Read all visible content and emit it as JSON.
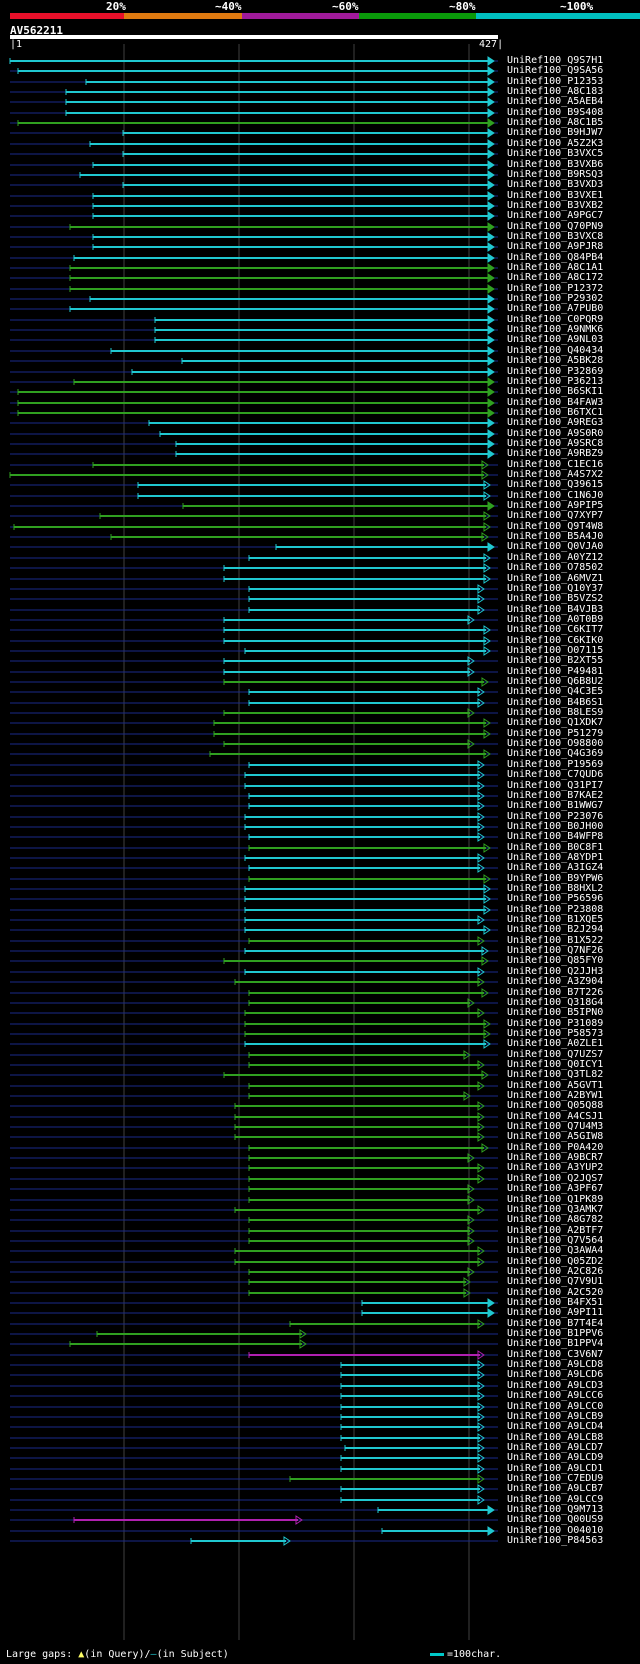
{
  "query": {
    "id": "AV562211",
    "start_label": "1",
    "end_label": "427"
  },
  "scale_ticks": [
    "20%",
    "~40%",
    "~60%",
    "~80%",
    "~100%"
  ],
  "colors": {
    "band_20": "#e8102a",
    "band_40": "#e07a10",
    "band_60": "#a01a9a",
    "band_80": "#0a9a0a",
    "band_100": "#00c0c0",
    "cyan": "#20c8d0",
    "green": "#30a020",
    "magenta": "#b020b0",
    "subject_line": "#1a2a8a",
    "grid": "#404040"
  },
  "legend": {
    "left_text_a": "Large gaps:",
    "left_text_b": "(in Query)/",
    "left_text_c": "(in Subject)",
    "right_text": "=100char."
  },
  "hits": [
    {
      "name": "UniRef100_Q9S7H1",
      "c": "c",
      "s": 10,
      "e": 494,
      "a": "p"
    },
    {
      "name": "UniRef100_Q9SA56",
      "c": "c",
      "s": 18,
      "e": 494,
      "a": "p"
    },
    {
      "name": "UniRef100_P12353",
      "c": "c",
      "s": 86,
      "e": 494,
      "a": "p"
    },
    {
      "name": "UniRef100_A8C183",
      "c": "c",
      "s": 66,
      "e": 494,
      "a": "p"
    },
    {
      "name": "UniRef100_A5AEB4",
      "c": "c",
      "s": 66,
      "e": 494,
      "a": "p"
    },
    {
      "name": "UniRef100_B9S408",
      "c": "c",
      "s": 66,
      "e": 494,
      "a": "p"
    },
    {
      "name": "UniRef100_A8C1B5",
      "c": "g",
      "s": 18,
      "e": 494,
      "a": "p"
    },
    {
      "name": "UniRef100_B9HJW7",
      "c": "c",
      "s": 123,
      "e": 494,
      "a": "p"
    },
    {
      "name": "UniRef100_A5Z2K3",
      "c": "c",
      "s": 90,
      "e": 494,
      "a": "p"
    },
    {
      "name": "UniRef100_B3VXC5",
      "c": "c",
      "s": 123,
      "e": 494,
      "a": "p"
    },
    {
      "name": "UniRef100_B3VXB6",
      "c": "c",
      "s": 93,
      "e": 494,
      "a": "p"
    },
    {
      "name": "UniRef100_B9RSQ3",
      "c": "c",
      "s": 80,
      "e": 494,
      "a": "p"
    },
    {
      "name": "UniRef100_B3VXD3",
      "c": "c",
      "s": 123,
      "e": 494,
      "a": "p"
    },
    {
      "name": "UniRef100_B3VXE1",
      "c": "c",
      "s": 93,
      "e": 494,
      "a": "p"
    },
    {
      "name": "UniRef100_B3VXB2",
      "c": "c",
      "s": 93,
      "e": 494,
      "a": "p"
    },
    {
      "name": "UniRef100_A9PGC7",
      "c": "c",
      "s": 93,
      "e": 494,
      "a": "p"
    },
    {
      "name": "UniRef100_Q70PN9",
      "c": "g",
      "s": 70,
      "e": 494,
      "a": "p"
    },
    {
      "name": "UniRef100_B3VXC8",
      "c": "c",
      "s": 93,
      "e": 494,
      "a": "p"
    },
    {
      "name": "UniRef100_A9PJR8",
      "c": "c",
      "s": 93,
      "e": 494,
      "a": "p"
    },
    {
      "name": "UniRef100_Q84PB4",
      "c": "c",
      "s": 74,
      "e": 494,
      "a": "p"
    },
    {
      "name": "UniRef100_A8C1A1",
      "c": "g",
      "s": 70,
      "e": 494,
      "a": "p"
    },
    {
      "name": "UniRef100_A8C172",
      "c": "g",
      "s": 70,
      "e": 494,
      "a": "p"
    },
    {
      "name": "UniRef100_P12372",
      "c": "g",
      "s": 70,
      "e": 494,
      "a": "p"
    },
    {
      "name": "UniRef100_P29302",
      "c": "c",
      "s": 90,
      "e": 494,
      "a": "p"
    },
    {
      "name": "UniRef100_A7PUB0",
      "c": "c",
      "s": 70,
      "e": 494,
      "a": "p"
    },
    {
      "name": "UniRef100_C0PQR9",
      "c": "c",
      "s": 155,
      "e": 494,
      "a": "p"
    },
    {
      "name": "UniRef100_A9NMK6",
      "c": "c",
      "s": 155,
      "e": 494,
      "a": "p"
    },
    {
      "name": "UniRef100_A9NL03",
      "c": "c",
      "s": 155,
      "e": 494,
      "a": "p"
    },
    {
      "name": "UniRef100_Q40434",
      "c": "c",
      "s": 111,
      "e": 494,
      "a": "p"
    },
    {
      "name": "UniRef100_A5BK28",
      "c": "c",
      "s": 182,
      "e": 494,
      "a": "p"
    },
    {
      "name": "UniRef100_P32869",
      "c": "c",
      "s": 132,
      "e": 494,
      "a": "p"
    },
    {
      "name": "UniRef100_P36213",
      "c": "g",
      "s": 74,
      "e": 494,
      "a": "p"
    },
    {
      "name": "UniRef100_B6SKI1",
      "c": "g",
      "s": 18,
      "e": 494,
      "a": "p"
    },
    {
      "name": "UniRef100_B4FAW3",
      "c": "g",
      "s": 18,
      "e": 494,
      "a": "p"
    },
    {
      "name": "UniRef100_B6TXC1",
      "c": "g",
      "s": 18,
      "e": 494,
      "a": "p"
    },
    {
      "name": "UniRef100_A9REG3",
      "c": "c",
      "s": 149,
      "e": 494,
      "a": "p"
    },
    {
      "name": "UniRef100_A9S0R0",
      "c": "c",
      "s": 160,
      "e": 494,
      "a": "p"
    },
    {
      "name": "UniRef100_A9SRC8",
      "c": "c",
      "s": 176,
      "e": 494,
      "a": "p"
    },
    {
      "name": "UniRef100_A9RBZ9",
      "c": "c",
      "s": 176,
      "e": 494,
      "a": "p"
    },
    {
      "name": "UniRef100_C1EC16",
      "c": "g",
      "s": 93,
      "e": 488,
      "a": "h"
    },
    {
      "name": "UniRef100_A4S7X2",
      "c": "g",
      "s": 10,
      "e": 488,
      "a": "h"
    },
    {
      "name": "UniRef100_Q39615",
      "c": "c",
      "s": 138,
      "e": 490,
      "a": "h"
    },
    {
      "name": "UniRef100_C1N6J0",
      "c": "c",
      "s": 138,
      "e": 490,
      "a": "h"
    },
    {
      "name": "UniRef100_A9PIP5",
      "c": "g",
      "s": 183,
      "e": 494,
      "a": "p"
    },
    {
      "name": "UniRef100_Q7XYP7",
      "c": "g",
      "s": 100,
      "e": 490,
      "a": "h"
    },
    {
      "name": "UniRef100_Q9T4W8",
      "c": "g",
      "s": 14,
      "e": 490,
      "a": "h"
    },
    {
      "name": "UniRef100_B5A4J0",
      "c": "g",
      "s": 111,
      "e": 488,
      "a": "h"
    },
    {
      "name": "UniRef100_Q0VJA0",
      "c": "c",
      "s": 276,
      "e": 494,
      "a": "p"
    },
    {
      "name": "UniRef100_A0YZ12",
      "c": "c",
      "s": 249,
      "e": 490,
      "a": "h"
    },
    {
      "name": "UniRef100_O78502",
      "c": "c",
      "s": 224,
      "e": 490,
      "a": "h"
    },
    {
      "name": "UniRef100_A6MVZ1",
      "c": "c",
      "s": 224,
      "e": 490,
      "a": "h"
    },
    {
      "name": "UniRef100_Q10Y37",
      "c": "c",
      "s": 249,
      "e": 484,
      "a": "h"
    },
    {
      "name": "UniRef100_B5VZS2",
      "c": "c",
      "s": 249,
      "e": 484,
      "a": "h"
    },
    {
      "name": "UniRef100_B4VJB3",
      "c": "c",
      "s": 249,
      "e": 484,
      "a": "h"
    },
    {
      "name": "UniRef100_A0T0B9",
      "c": "c",
      "s": 224,
      "e": 474,
      "a": "h"
    },
    {
      "name": "UniRef100_C6KIT7",
      "c": "c",
      "s": 224,
      "e": 490,
      "a": "h"
    },
    {
      "name": "UniRef100_C6KIK0",
      "c": "c",
      "s": 224,
      "e": 490,
      "a": "h"
    },
    {
      "name": "UniRef100_O07115",
      "c": "c",
      "s": 245,
      "e": 490,
      "a": "h"
    },
    {
      "name": "UniRef100_B2XT55",
      "c": "c",
      "s": 224,
      "e": 474,
      "a": "h"
    },
    {
      "name": "UniRef100_P49481",
      "c": "c",
      "s": 224,
      "e": 474,
      "a": "h"
    },
    {
      "name": "UniRef100_Q6B8U2",
      "c": "g",
      "s": 224,
      "e": 488,
      "a": "h"
    },
    {
      "name": "UniRef100_Q4C3E5",
      "c": "c",
      "s": 249,
      "e": 484,
      "a": "h"
    },
    {
      "name": "UniRef100_B4B6S1",
      "c": "c",
      "s": 249,
      "e": 484,
      "a": "h"
    },
    {
      "name": "UniRef100_B8LES9",
      "c": "g",
      "s": 224,
      "e": 474,
      "a": "h"
    },
    {
      "name": "UniRef100_Q1XDK7",
      "c": "g",
      "s": 214,
      "e": 490,
      "a": "h"
    },
    {
      "name": "UniRef100_P51279",
      "c": "g",
      "s": 214,
      "e": 490,
      "a": "h"
    },
    {
      "name": "UniRef100_O98800",
      "c": "g",
      "s": 224,
      "e": 474,
      "a": "h"
    },
    {
      "name": "UniRef100_Q4G369",
      "c": "g",
      "s": 210,
      "e": 490,
      "a": "h"
    },
    {
      "name": "UniRef100_P19569",
      "c": "c",
      "s": 249,
      "e": 484,
      "a": "h"
    },
    {
      "name": "UniRef100_C7QUD6",
      "c": "c",
      "s": 245,
      "e": 484,
      "a": "h"
    },
    {
      "name": "UniRef100_Q31PI7",
      "c": "c",
      "s": 245,
      "e": 484,
      "a": "h"
    },
    {
      "name": "UniRef100_B7KAE2",
      "c": "c",
      "s": 249,
      "e": 484,
      "a": "h"
    },
    {
      "name": "UniRef100_B1WWG7",
      "c": "c",
      "s": 249,
      "e": 484,
      "a": "h"
    },
    {
      "name": "UniRef100_P23076",
      "c": "c",
      "s": 245,
      "e": 484,
      "a": "h"
    },
    {
      "name": "UniRef100_B0JH00",
      "c": "c",
      "s": 245,
      "e": 484,
      "a": "h"
    },
    {
      "name": "UniRef100_B4WFP8",
      "c": "c",
      "s": 249,
      "e": 484,
      "a": "h"
    },
    {
      "name": "UniRef100_B0C8F1",
      "c": "g",
      "s": 249,
      "e": 490,
      "a": "h"
    },
    {
      "name": "UniRef100_A8YDP1",
      "c": "c",
      "s": 245,
      "e": 484,
      "a": "h"
    },
    {
      "name": "UniRef100_A3IGZ4",
      "c": "c",
      "s": 249,
      "e": 484,
      "a": "h"
    },
    {
      "name": "UniRef100_B9YPW6",
      "c": "g",
      "s": 249,
      "e": 490,
      "a": "h"
    },
    {
      "name": "UniRef100_B8HXL2",
      "c": "c",
      "s": 245,
      "e": 490,
      "a": "h"
    },
    {
      "name": "UniRef100_P56596",
      "c": "c",
      "s": 245,
      "e": 490,
      "a": "h"
    },
    {
      "name": "UniRef100_P23808",
      "c": "c",
      "s": 245,
      "e": 490,
      "a": "h"
    },
    {
      "name": "UniRef100_B1XQE5",
      "c": "c",
      "s": 245,
      "e": 484,
      "a": "h"
    },
    {
      "name": "UniRef100_B2J294",
      "c": "c",
      "s": 245,
      "e": 490,
      "a": "h"
    },
    {
      "name": "UniRef100_B1X522",
      "c": "g",
      "s": 249,
      "e": 484,
      "a": "h"
    },
    {
      "name": "UniRef100_Q7NF26",
      "c": "c",
      "s": 245,
      "e": 488,
      "a": "h"
    },
    {
      "name": "UniRef100_Q85FY0",
      "c": "g",
      "s": 224,
      "e": 488,
      "a": "h"
    },
    {
      "name": "UniRef100_Q2JJH3",
      "c": "c",
      "s": 245,
      "e": 484,
      "a": "h"
    },
    {
      "name": "UniRef100_A3Z904",
      "c": "g",
      "s": 235,
      "e": 484,
      "a": "h"
    },
    {
      "name": "UniRef100_B7T226",
      "c": "g",
      "s": 249,
      "e": 488,
      "a": "h"
    },
    {
      "name": "UniRef100_Q318G4",
      "c": "g",
      "s": 249,
      "e": 474,
      "a": "h"
    },
    {
      "name": "UniRef100_B5IPN0",
      "c": "g",
      "s": 245,
      "e": 484,
      "a": "h"
    },
    {
      "name": "UniRef100_P31089",
      "c": "g",
      "s": 245,
      "e": 490,
      "a": "h"
    },
    {
      "name": "UniRef100_P58573",
      "c": "g",
      "s": 245,
      "e": 490,
      "a": "h"
    },
    {
      "name": "UniRef100_A0ZLE1",
      "c": "c",
      "s": 245,
      "e": 490,
      "a": "h"
    },
    {
      "name": "UniRef100_Q7UZS7",
      "c": "g",
      "s": 249,
      "e": 470,
      "a": "h"
    },
    {
      "name": "UniRef100_Q0ICY1",
      "c": "g",
      "s": 249,
      "e": 484,
      "a": "h"
    },
    {
      "name": "UniRef100_Q3TL82",
      "c": "g",
      "s": 224,
      "e": 488,
      "a": "h"
    },
    {
      "name": "UniRef100_A5GVT1",
      "c": "g",
      "s": 249,
      "e": 484,
      "a": "h"
    },
    {
      "name": "UniRef100_A2BYW1",
      "c": "g",
      "s": 249,
      "e": 470,
      "a": "h"
    },
    {
      "name": "UniRef100_Q05Q88",
      "c": "g",
      "s": 235,
      "e": 484,
      "a": "h"
    },
    {
      "name": "UniRef100_A4CSJ1",
      "c": "g",
      "s": 235,
      "e": 484,
      "a": "h"
    },
    {
      "name": "UniRef100_Q7U4M3",
      "c": "g",
      "s": 235,
      "e": 484,
      "a": "h"
    },
    {
      "name": "UniRef100_A5GIW8",
      "c": "g",
      "s": 235,
      "e": 484,
      "a": "h"
    },
    {
      "name": "UniRef100_P0A420",
      "c": "g",
      "s": 249,
      "e": 488,
      "a": "h"
    },
    {
      "name": "UniRef100_A9BCR7",
      "c": "g",
      "s": 249,
      "e": 474,
      "a": "h"
    },
    {
      "name": "UniRef100_A3YUP2",
      "c": "g",
      "s": 249,
      "e": 484,
      "a": "h"
    },
    {
      "name": "UniRef100_Q2JQS7",
      "c": "g",
      "s": 249,
      "e": 484,
      "a": "h"
    },
    {
      "name": "UniRef100_A3PF67",
      "c": "g",
      "s": 249,
      "e": 474,
      "a": "h"
    },
    {
      "name": "UniRef100_Q1PK89",
      "c": "g",
      "s": 249,
      "e": 474,
      "a": "h"
    },
    {
      "name": "UniRef100_Q3AMK7",
      "c": "g",
      "s": 235,
      "e": 484,
      "a": "h"
    },
    {
      "name": "UniRef100_A8G782",
      "c": "g",
      "s": 249,
      "e": 474,
      "a": "h"
    },
    {
      "name": "UniRef100_A2BTF7",
      "c": "g",
      "s": 249,
      "e": 474,
      "a": "h"
    },
    {
      "name": "UniRef100_Q7V564",
      "c": "g",
      "s": 249,
      "e": 474,
      "a": "h"
    },
    {
      "name": "UniRef100_Q3AWA4",
      "c": "g",
      "s": 235,
      "e": 484,
      "a": "h"
    },
    {
      "name": "UniRef100_Q05ZD2",
      "c": "g",
      "s": 235,
      "e": 484,
      "a": "h"
    },
    {
      "name": "UniRef100_A2C826",
      "c": "g",
      "s": 249,
      "e": 474,
      "a": "h"
    },
    {
      "name": "UniRef100_Q7V9U1",
      "c": "g",
      "s": 249,
      "e": 470,
      "a": "h"
    },
    {
      "name": "UniRef100_A2C520",
      "c": "g",
      "s": 249,
      "e": 470,
      "a": "h"
    },
    {
      "name": "UniRef100_B4FX51",
      "c": "c",
      "s": 362,
      "e": 494,
      "a": "p"
    },
    {
      "name": "UniRef100_A9PI11",
      "c": "c",
      "s": 362,
      "e": 494,
      "a": "p"
    },
    {
      "name": "UniRef100_B7T4E4",
      "c": "g",
      "s": 290,
      "e": 484,
      "a": "h"
    },
    {
      "name": "UniRef100_B1PPV6",
      "c": "g",
      "s": 97,
      "e": 306,
      "a": "h"
    },
    {
      "name": "UniRef100_B1PPV4",
      "c": "g",
      "s": 70,
      "e": 306,
      "a": "h"
    },
    {
      "name": "UniRef100_C3V6N7",
      "c": "m",
      "s": 249,
      "e": 484,
      "a": "h"
    },
    {
      "name": "UniRef100_A9LCD8",
      "c": "c",
      "s": 341,
      "e": 484,
      "a": "h"
    },
    {
      "name": "UniRef100_A9LCD6",
      "c": "c",
      "s": 341,
      "e": 484,
      "a": "h"
    },
    {
      "name": "UniRef100_A9LCD3",
      "c": "c",
      "s": 341,
      "e": 484,
      "a": "h"
    },
    {
      "name": "UniRef100_A9LCC6",
      "c": "c",
      "s": 341,
      "e": 484,
      "a": "h"
    },
    {
      "name": "UniRef100_A9LCC0",
      "c": "c",
      "s": 341,
      "e": 484,
      "a": "h"
    },
    {
      "name": "UniRef100_A9LCB9",
      "c": "c",
      "s": 341,
      "e": 484,
      "a": "h"
    },
    {
      "name": "UniRef100_A9LCD4",
      "c": "c",
      "s": 341,
      "e": 484,
      "a": "h"
    },
    {
      "name": "UniRef100_A9LCB8",
      "c": "c",
      "s": 341,
      "e": 484,
      "a": "h"
    },
    {
      "name": "UniRef100_A9LCD7",
      "c": "c",
      "s": 345,
      "e": 484,
      "a": "h"
    },
    {
      "name": "UniRef100_A9LCD9",
      "c": "c",
      "s": 341,
      "e": 484,
      "a": "h"
    },
    {
      "name": "UniRef100_A9LCD1",
      "c": "c",
      "s": 341,
      "e": 484,
      "a": "h"
    },
    {
      "name": "UniRef100_C7EDU9",
      "c": "g",
      "s": 290,
      "e": 484,
      "a": "h"
    },
    {
      "name": "UniRef100_A9LCB7",
      "c": "c",
      "s": 341,
      "e": 484,
      "a": "h"
    },
    {
      "name": "UniRef100_A9LCC9",
      "c": "c",
      "s": 341,
      "e": 484,
      "a": "h"
    },
    {
      "name": "UniRef100_Q9M713",
      "c": "c",
      "s": 378,
      "e": 494,
      "a": "p"
    },
    {
      "name": "UniRef100_Q00US9",
      "c": "m",
      "s": 74,
      "e": 302,
      "a": "h"
    },
    {
      "name": "UniRef100_O04010",
      "c": "c",
      "s": 382,
      "e": 494,
      "a": "p"
    },
    {
      "name": "UniRef100_P84563",
      "c": "c",
      "s": 191,
      "e": 290,
      "a": "h"
    }
  ]
}
